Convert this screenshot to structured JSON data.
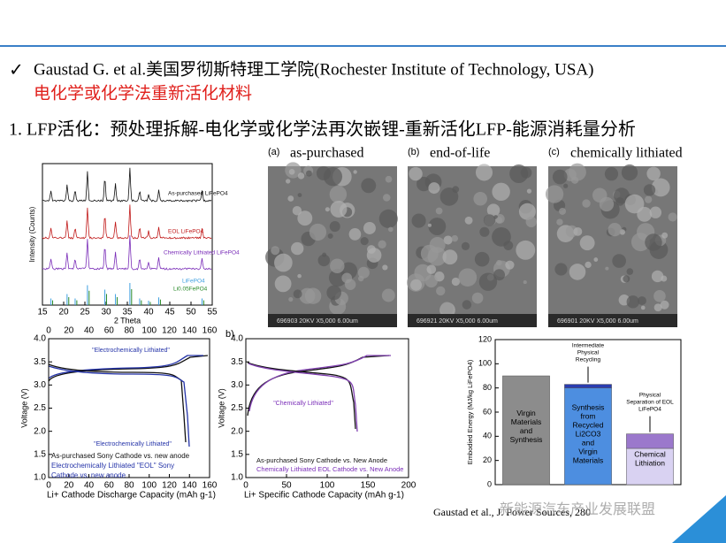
{
  "bullet": {
    "line1": "Gaustad G. et al.美国罗彻斯特理工学院(Rochester Institute of Technology, USA)",
    "line2": "电化学或化学法重新活化材料"
  },
  "heading": "1. LFP活化：预处理拆解-电化学或化学法再次嵌锂-重新活化LFP-能源消耗量分析",
  "xrd": {
    "ylabel": "Intensity (Counts)",
    "xlabel": "2 Theta",
    "xlim": [
      15,
      55
    ],
    "xticks": [
      15,
      20,
      25,
      30,
      35,
      40,
      45,
      50,
      55
    ],
    "traces": [
      "As-purchased LiFePO4",
      "EOL LiFePO4",
      "Chemically Lithiated LiFePO4",
      "LiFePO4",
      "Li0.05FePO4"
    ]
  },
  "sem": [
    {
      "tag": "(a)",
      "caption": "as-purchased",
      "footer": "696903  20KV  X5,000  6.00um"
    },
    {
      "tag": "(b)",
      "caption": "end-of-life",
      "footer": "696921  20KV  X5,000  6.00um"
    },
    {
      "tag": "(c)",
      "caption": "chemically lithiated",
      "footer": "696901  20KV  X5,000  6.00um"
    }
  ],
  "chart_a": {
    "xlabel": "Li+ Cathode Discharge Capacity (mAh g-1)",
    "ylabel": "Voltage (V)",
    "xlim": [
      0,
      160
    ],
    "xticks": [
      0,
      20,
      40,
      60,
      80,
      100,
      120,
      140,
      160
    ],
    "ylim": [
      1,
      4
    ],
    "yticks": [
      {
        "value": 1,
        "label": "1.0"
      },
      {
        "value": 1.5,
        "label": "1.5"
      },
      {
        "value": 2,
        "label": "2.0"
      },
      {
        "value": 2.5,
        "label": "2.5"
      },
      {
        "value": 3,
        "label": "3.0"
      },
      {
        "value": 3.5,
        "label": "3.5"
      },
      {
        "value": 4,
        "label": "4.0"
      }
    ],
    "annotation": "\"Electrochemically Lithiated\"",
    "legend": [
      "As-purchased Sony Cathode vs. new anode",
      "Electrochemically Lithiated \"EOL\" Sony",
      "Cathode vs. new anode"
    ]
  },
  "chart_b": {
    "tag": "b)",
    "xlabel": "Li+ Specific Cathode Capacity (mAh g-1)",
    "ylabel": "Voltage (V)",
    "xlim": [
      0,
      200
    ],
    "xticks": [
      0,
      50,
      100,
      150,
      200
    ],
    "ylim": [
      1,
      4
    ],
    "yticks": [
      {
        "value": 1,
        "label": "1.0"
      },
      {
        "value": 1.5,
        "label": "1.5"
      },
      {
        "value": 2,
        "label": "2.0"
      },
      {
        "value": 2.5,
        "label": "2.5"
      },
      {
        "value": 3,
        "label": "3.0"
      },
      {
        "value": 3.5,
        "label": "3.5"
      },
      {
        "value": 4,
        "label": "4.0"
      }
    ],
    "annotation": "\"Chemically  Lithiated\"",
    "legend": [
      "As-purchased Sony Cathode vs. New Anode",
      "Chemically Lithiated EOL Cathode vs. New Anode"
    ]
  },
  "chart_c": {
    "type": "bar",
    "ylabel": "Embodied Energy (MJ/kg LiFePO4)",
    "ylim": [
      0,
      120
    ],
    "yticks": [
      0,
      20,
      40,
      60,
      80,
      100,
      120
    ],
    "bars": [
      {
        "label": [
          "Virgin",
          "Materials",
          "and",
          "Synthesis"
        ],
        "values": [
          90
        ],
        "colors": [
          "#8c8c8c"
        ]
      },
      {
        "label": [
          "Synthesis",
          "from",
          "Recycled",
          "Li2CO3",
          "and",
          "Virgin",
          "Materials"
        ],
        "values": [
          80,
          3
        ],
        "colors": [
          "#4d8ee0",
          "#2a3cb0"
        ],
        "annotation": [
          "Intermediate",
          "Physical",
          "Recycling"
        ]
      },
      {
        "label": [
          "Chemical",
          "Lithiation"
        ],
        "values": [
          30,
          12
        ],
        "colors": [
          "#d9d2f2",
          "#9b78cc"
        ],
        "annotation": [
          "Physical",
          "Separation of EOL",
          "LiFePO4"
        ]
      }
    ]
  },
  "citation": "Gaustad et al., J. Power Sources, 280",
  "watermark": "新能源汽车产业发展联盟"
}
